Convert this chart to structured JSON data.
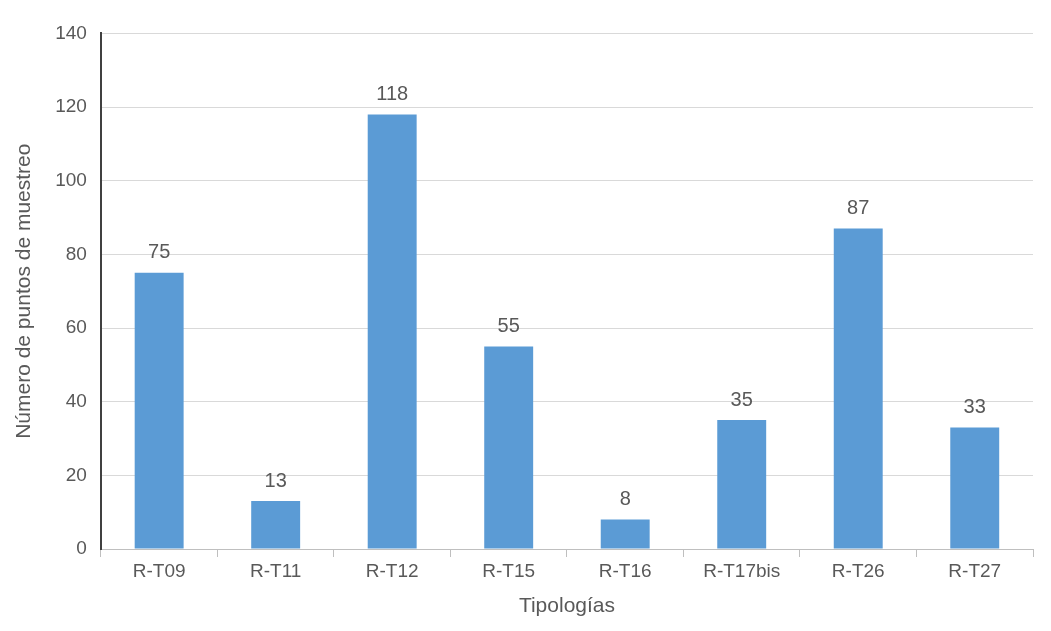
{
  "chart_data": {
    "type": "bar",
    "xlabel": "Tipologías",
    "ylabel": "Número de puntos de muestreo",
    "categories": [
      "R-T09",
      "R-T11",
      "R-T12",
      "R-T15",
      "R-T16",
      "R-T17bis",
      "R-T26",
      "R-T27"
    ],
    "values": [
      75,
      13,
      118,
      55,
      8,
      35,
      87,
      33
    ],
    "color": "#5b9bd5",
    "ylim": [
      0,
      140
    ],
    "yticks": [
      0,
      20,
      40,
      60,
      80,
      100,
      120,
      140
    ],
    "grid": "y",
    "data_labels": true,
    "legend": false
  }
}
